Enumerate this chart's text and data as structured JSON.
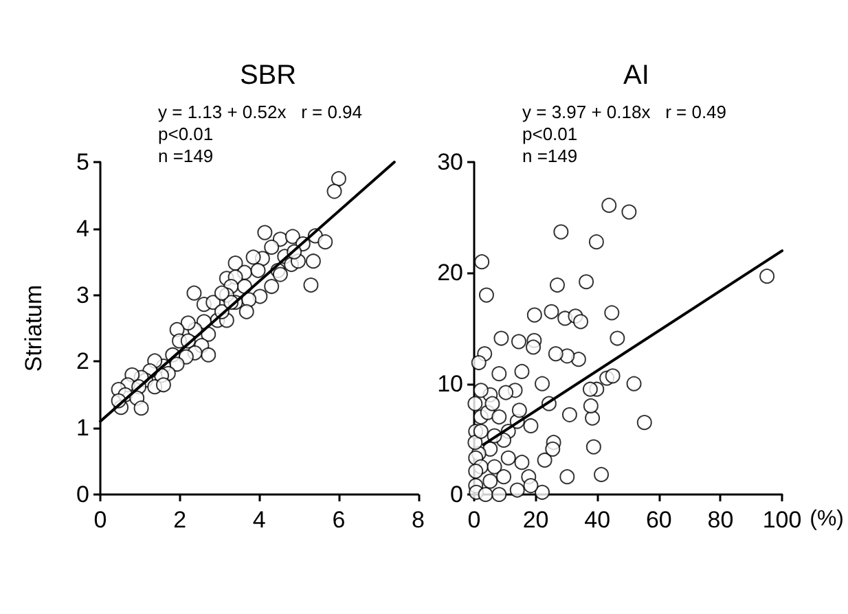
{
  "chart_data": [
    {
      "type": "scatter",
      "title": "SBR",
      "ylabel": "Striatum",
      "annotations": [
        "y = 1.13 + 0.52x   r = 0.94",
        "p<0.01",
        "n =149"
      ],
      "xlim": [
        0,
        8
      ],
      "xticks": [
        0,
        2,
        4,
        6,
        8
      ],
      "ylim": [
        0,
        5
      ],
      "yticks": [
        0,
        1,
        2,
        3,
        4,
        5
      ],
      "grid": false,
      "marker": "circle",
      "series": [
        {
          "color": "#000000",
          "x": [
            6.0,
            5.89,
            5.41,
            5.66,
            4.14,
            4.53,
            4.84,
            5.1,
            5.36,
            5.3,
            4.31,
            4.64,
            4.81,
            4.98,
            4.47,
            4.08,
            3.85,
            3.4,
            3.63,
            3.18,
            3.4,
            3.97,
            4.31,
            3.63,
            3.29,
            4.02,
            3.74,
            3.68,
            3.4,
            3.18,
            2.36,
            2.61,
            2.84,
            2.95,
            3.18,
            3.06,
            2.61,
            2.72,
            2.38,
            2.21,
            1.93,
            1.99,
            2.21,
            2.55,
            2.72,
            2.38,
            2.16,
            1.82,
            1.93,
            1.59,
            1.37,
            1.71,
            1.54,
            1.25,
            1.14,
            1.37,
            1.59,
            1.03,
            0.8,
            0.69,
            0.46,
            0.97,
            0.63,
            0.92,
            0.52,
            0.46,
            1.03,
            3.29,
            3.06,
            4.53,
            4.88
          ],
          "values": [
            4.75,
            4.56,
            3.89,
            3.8,
            3.94,
            3.84,
            3.88,
            3.77,
            3.51,
            3.15,
            3.72,
            3.58,
            3.46,
            3.51,
            3.37,
            3.55,
            3.57,
            3.48,
            3.34,
            3.25,
            3.27,
            3.37,
            3.13,
            3.13,
            3.13,
            2.98,
            2.93,
            2.75,
            2.89,
            3.0,
            3.03,
            2.86,
            2.89,
            2.62,
            2.62,
            2.75,
            2.6,
            2.41,
            2.48,
            2.58,
            2.48,
            2.31,
            2.31,
            2.24,
            2.1,
            2.13,
            2.07,
            2.1,
            1.96,
            1.93,
            2.01,
            1.82,
            1.79,
            1.86,
            1.72,
            1.62,
            1.65,
            1.76,
            1.8,
            1.65,
            1.58,
            1.62,
            1.5,
            1.45,
            1.31,
            1.41,
            1.3,
            2.89,
            3.03,
            3.31,
            3.65
          ]
        },
        {
          "type": "line",
          "color": "#000000",
          "line_style": "solid",
          "marker": "none",
          "x": [
            0,
            7.4
          ],
          "values": [
            1.1,
            5.0
          ]
        }
      ]
    },
    {
      "type": "scatter",
      "title": "AI",
      "xlabel": "(%)",
      "annotations": [
        "y = 3.97 + 0.18x   r = 0.49",
        "p<0.01",
        "n =149"
      ],
      "xlim": [
        0,
        100
      ],
      "xticks": [
        0,
        20,
        40,
        60,
        80,
        100
      ],
      "ylim": [
        0,
        30
      ],
      "yticks": [
        0,
        10,
        20,
        30
      ],
      "grid": false,
      "marker": "circle",
      "series": [
        {
          "color": "#000000",
          "x": [
            43.8,
            50.3,
            28.2,
            39.7,
            2.5,
            4.0,
            27.0,
            36.4,
            44.7,
            46.5,
            25.1,
            29.5,
            32.9,
            34.6,
            33.9,
            30.2,
            26.5,
            19.6,
            19.5,
            19.2,
            8.8,
            14.5,
            15.5,
            22.1,
            24.3,
            3.4,
            1.5,
            8.1,
            13.3,
            10.3,
            5.2,
            2.2,
            0.3,
            2.2,
            0.5,
            4.4,
            8.1,
            11.1,
            14.0,
            18.4,
            9.6,
            5.2,
            1.5,
            0.5,
            2.2,
            6.6,
            11.1,
            15.5,
            17.7,
            9.6,
            5.2,
            0.5,
            0.7,
            3.7,
            14.0,
            22.1,
            22.9,
            25.8,
            25.5,
            30.2,
            41.3,
            38.8,
            38.4,
            37.9,
            39.8,
            37.7,
            43.1,
            45.0,
            51.9,
            55.3,
            31.0,
            14.7,
            0.5,
            8.1,
            18.4,
            0.3,
            2.2,
            6.6,
            5.9,
            95.1
          ],
          "values": [
            26.1,
            25.5,
            23.7,
            22.8,
            21.0,
            18.0,
            18.9,
            19.2,
            16.4,
            14.1,
            16.5,
            15.9,
            16.1,
            15.6,
            12.2,
            12.5,
            12.7,
            16.2,
            13.9,
            13.3,
            14.1,
            13.8,
            11.1,
            10.0,
            8.2,
            12.7,
            11.9,
            10.9,
            9.4,
            9.2,
            9.0,
            9.4,
            8.2,
            7.0,
            5.7,
            7.4,
            7.0,
            5.7,
            6.6,
            6.2,
            4.9,
            4.1,
            3.7,
            3.3,
            2.5,
            2.5,
            3.3,
            2.9,
            1.6,
            1.6,
            1.2,
            0.8,
            0.2,
            0,
            0.4,
            0.2,
            3.1,
            4.7,
            4.1,
            1.6,
            1.8,
            4.3,
            6.9,
            8.0,
            9.5,
            9.5,
            10.5,
            10.7,
            10.0,
            6.5,
            7.2,
            7.6,
            2.1,
            0,
            0.8,
            4.7,
            5.7,
            5.3,
            8.2,
            19.7
          ]
        },
        {
          "type": "line",
          "color": "#000000",
          "line_style": "solid",
          "marker": "none",
          "x": [
            3,
            100
          ],
          "values": [
            4.5,
            22.0
          ]
        }
      ]
    }
  ]
}
